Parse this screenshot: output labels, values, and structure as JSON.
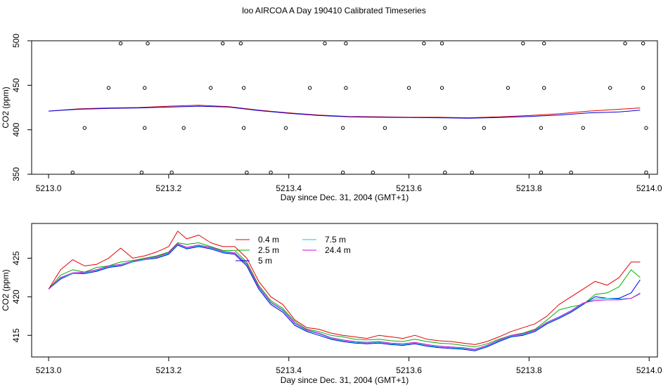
{
  "title": "loo AIRCOA A  Day 190410  Calibrated Timeseries",
  "colors": {
    "0.4 m": "#e00000",
    "2.5 m": "#00b000",
    "5 m": "#0000e0",
    "7.5 m": "#00d0d0",
    "24.4 m": "#e000e0",
    "axis": "#000000",
    "background": "#ffffff"
  },
  "chart_data": [
    {
      "type": "line",
      "title": "",
      "xlabel": "Day since Dec. 31, 2004 (GMT+1)",
      "ylabel": "CO2 (ppm)",
      "xlim": [
        4.98,
        5.013
      ],
      "ylim": [
        350,
        500
      ],
      "x_ticks": [
        "5213.0",
        "5213.2",
        "5213.4",
        "5213.6",
        "5213.8",
        "5214.0"
      ],
      "y_ticks": [
        "350",
        "400",
        "450",
        "500"
      ],
      "legend": null,
      "series": [
        {
          "color": "#e00000",
          "x": [
            5213.0,
            5213.05,
            5213.1,
            5213.15,
            5213.2,
            5213.25,
            5213.3,
            5213.35,
            5213.4,
            5213.45,
            5213.5,
            5213.55,
            5213.6,
            5213.65,
            5213.7,
            5213.75,
            5213.8,
            5213.85,
            5213.9,
            5213.95,
            5213.985
          ],
          "y": [
            421,
            423.5,
            424.5,
            425,
            426.5,
            427.5,
            426,
            422,
            419,
            416.5,
            415,
            414.5,
            414,
            414,
            413.5,
            414.5,
            416,
            418,
            421,
            423,
            424.5
          ]
        },
        {
          "color": "#0000e0",
          "x": [
            5213.0,
            5213.05,
            5213.1,
            5213.15,
            5213.2,
            5213.25,
            5213.3,
            5213.35,
            5213.4,
            5213.45,
            5213.5,
            5213.55,
            5213.6,
            5213.65,
            5213.7,
            5213.75,
            5213.8,
            5213.85,
            5213.9,
            5213.95,
            5213.985
          ],
          "y": [
            421,
            423,
            424,
            424.5,
            425.5,
            426.5,
            425.5,
            421.5,
            418.5,
            416,
            414.5,
            414,
            413.8,
            413.5,
            413,
            413.8,
            415,
            416.5,
            419,
            420,
            422
          ]
        }
      ],
      "points": {
        "x": [
          5213.04,
          5213.06,
          5213.1,
          5213.12,
          5213.155,
          5213.16,
          5213.16,
          5213.165,
          5213.205,
          5213.225,
          5213.27,
          5213.29,
          5213.32,
          5213.325,
          5213.325,
          5213.33,
          5213.37,
          5213.395,
          5213.435,
          5213.46,
          5213.49,
          5213.49,
          5213.495,
          5213.495,
          5213.54,
          5213.56,
          5213.6,
          5213.625,
          5213.655,
          5213.655,
          5213.66,
          5213.66,
          5213.705,
          5213.725,
          5213.765,
          5213.79,
          5213.82,
          5213.82,
          5213.825,
          5213.825,
          5213.87,
          5213.89,
          5213.935,
          5213.96,
          5213.99,
          5213.99,
          5213.995,
          5213.995
        ],
        "y": [
          352,
          402,
          447,
          497,
          352,
          402,
          447,
          497,
          352,
          402,
          447,
          497,
          497,
          447,
          402,
          352,
          352,
          402,
          447,
          497,
          352,
          402,
          447,
          497,
          352,
          402,
          447,
          497,
          497,
          447,
          402,
          352,
          352,
          402,
          447,
          497,
          352,
          402,
          447,
          497,
          352,
          402,
          447,
          497,
          497,
          447,
          402,
          352
        ]
      }
    },
    {
      "type": "line",
      "title": "",
      "xlabel": "Day since Dec. 31, 2004 (GMT+1)",
      "ylabel": "CO2 (ppm)",
      "xlim": [
        4.98,
        5.013
      ],
      "ylim": [
        412.2,
        429.5
      ],
      "x_ticks": [
        "5213.0",
        "5213.2",
        "5213.4",
        "5213.6",
        "5213.8",
        "5214.0"
      ],
      "y_ticks": [
        "415",
        "420",
        "425"
      ],
      "legend": {
        "placement": "top-center",
        "entries": [
          "0.4 m",
          "2.5 m",
          "5 m",
          "7.5 m",
          "24.4 m"
        ]
      },
      "series": [
        {
          "name": "0.4 m",
          "color": "#e00000",
          "x": [
            5213.0,
            5213.02,
            5213.04,
            5213.06,
            5213.08,
            5213.1,
            5213.12,
            5213.14,
            5213.16,
            5213.18,
            5213.2,
            5213.215,
            5213.23,
            5213.25,
            5213.27,
            5213.29,
            5213.31,
            5213.33,
            5213.35,
            5213.37,
            5213.39,
            5213.41,
            5213.43,
            5213.45,
            5213.47,
            5213.49,
            5213.51,
            5213.53,
            5213.55,
            5213.57,
            5213.59,
            5213.61,
            5213.63,
            5213.65,
            5213.67,
            5213.69,
            5213.71,
            5213.73,
            5213.75,
            5213.77,
            5213.79,
            5213.81,
            5213.83,
            5213.85,
            5213.87,
            5213.89,
            5213.91,
            5213.93,
            5213.95,
            5213.97,
            5213.985
          ],
          "y": [
            421,
            423.5,
            424.8,
            424,
            424.2,
            425,
            426.3,
            425,
            425.3,
            425.8,
            426.5,
            428.5,
            427.5,
            428,
            427,
            426.5,
            426.5,
            425,
            422,
            420,
            419,
            417,
            416,
            415.8,
            415.3,
            415,
            414.8,
            414.6,
            415,
            414.8,
            414.6,
            415,
            414.5,
            414.3,
            414.2,
            414,
            413.8,
            414.2,
            414.8,
            415.5,
            416,
            416.5,
            417.5,
            419,
            420,
            421,
            422,
            421.5,
            422.5,
            424.5,
            424.5
          ]
        },
        {
          "name": "2.5 m",
          "color": "#00b000",
          "x": [
            5213.0,
            5213.02,
            5213.04,
            5213.06,
            5213.08,
            5213.1,
            5213.12,
            5213.14,
            5213.16,
            5213.18,
            5213.2,
            5213.215,
            5213.23,
            5213.25,
            5213.27,
            5213.29,
            5213.31,
            5213.33,
            5213.35,
            5213.37,
            5213.39,
            5213.41,
            5213.43,
            5213.45,
            5213.47,
            5213.49,
            5213.51,
            5213.53,
            5213.55,
            5213.57,
            5213.59,
            5213.61,
            5213.63,
            5213.65,
            5213.67,
            5213.69,
            5213.71,
            5213.73,
            5213.75,
            5213.77,
            5213.79,
            5213.81,
            5213.83,
            5213.85,
            5213.87,
            5213.89,
            5213.91,
            5213.93,
            5213.95,
            5213.97,
            5213.985
          ],
          "y": [
            421,
            422.8,
            423.5,
            423.2,
            423.8,
            424,
            424.5,
            424.7,
            425,
            425.3,
            425.8,
            427,
            426.8,
            427,
            426.5,
            426,
            426,
            424.5,
            421.5,
            419.5,
            418.5,
            416.8,
            415.8,
            415.5,
            415,
            414.8,
            414.5,
            414.4,
            414.5,
            414.3,
            414.2,
            414.5,
            414.2,
            414,
            413.9,
            413.7,
            413.5,
            413.9,
            414.5,
            415,
            415.3,
            415.8,
            417,
            418.3,
            418.7,
            419,
            420.3,
            420.5,
            421.3,
            423.5,
            422.5
          ]
        },
        {
          "name": "5 m",
          "color": "#0000e0",
          "x": [
            5213.0,
            5213.02,
            5213.04,
            5213.06,
            5213.08,
            5213.1,
            5213.12,
            5213.14,
            5213.16,
            5213.18,
            5213.2,
            5213.215,
            5213.23,
            5213.25,
            5213.27,
            5213.29,
            5213.31,
            5213.33,
            5213.35,
            5213.37,
            5213.39,
            5213.41,
            5213.43,
            5213.45,
            5213.47,
            5213.49,
            5213.51,
            5213.53,
            5213.55,
            5213.57,
            5213.59,
            5213.61,
            5213.63,
            5213.65,
            5213.67,
            5213.69,
            5213.71,
            5213.73,
            5213.75,
            5213.77,
            5213.79,
            5213.81,
            5213.83,
            5213.85,
            5213.87,
            5213.89,
            5213.91,
            5213.93,
            5213.95,
            5213.97,
            5213.985
          ],
          "y": [
            421,
            422.3,
            423,
            423,
            423.3,
            423.8,
            424,
            424.5,
            424.8,
            425,
            425.5,
            426.7,
            426.2,
            426.5,
            426.2,
            425.7,
            425.5,
            424,
            421,
            419,
            418,
            416.3,
            415.5,
            415,
            414.5,
            414.2,
            414,
            413.9,
            414,
            413.8,
            413.7,
            413.9,
            413.6,
            413.4,
            413.3,
            413.2,
            413,
            413.5,
            414.2,
            414.8,
            415,
            415.5,
            416.5,
            417.2,
            418,
            419,
            420,
            419.8,
            419.8,
            420.5,
            422.2
          ]
        },
        {
          "name": "7.5 m",
          "color": "#00d0d0",
          "x": [
            5213.0,
            5213.02,
            5213.04,
            5213.06,
            5213.08,
            5213.1,
            5213.12,
            5213.14,
            5213.16,
            5213.18,
            5213.2,
            5213.215,
            5213.23,
            5213.25,
            5213.27,
            5213.29,
            5213.31,
            5213.33,
            5213.35,
            5213.37,
            5213.39,
            5213.41,
            5213.43,
            5213.45,
            5213.47,
            5213.49,
            5213.51,
            5213.53,
            5213.55,
            5213.57,
            5213.59,
            5213.61,
            5213.63,
            5213.65,
            5213.67,
            5213.69,
            5213.71,
            5213.73,
            5213.75,
            5213.77,
            5213.79,
            5213.81,
            5213.83,
            5213.85,
            5213.87,
            5213.89,
            5213.91,
            5213.93,
            5213.95,
            5213.97,
            5213.985
          ],
          "y": [
            421,
            422.4,
            423,
            423.1,
            423.4,
            423.9,
            424.1,
            424.5,
            424.8,
            425.1,
            425.6,
            426.8,
            426.3,
            426.6,
            426.3,
            425.8,
            425.6,
            424.2,
            421.2,
            419.2,
            418.2,
            416.5,
            415.6,
            415.2,
            414.6,
            414.3,
            414.1,
            414,
            414.1,
            413.9,
            413.8,
            414,
            413.7,
            413.5,
            413.4,
            413.3,
            413.1,
            413.6,
            414.3,
            414.9,
            415.1,
            415.6,
            416.6,
            417.3,
            418.1,
            419.1,
            419.7,
            419.8,
            419.7,
            419.8,
            420.5
          ]
        },
        {
          "name": "24.4 m",
          "color": "#e000e0",
          "x": [
            5213.0,
            5213.02,
            5213.04,
            5213.06,
            5213.08,
            5213.1,
            5213.12,
            5213.14,
            5213.16,
            5213.18,
            5213.2,
            5213.215,
            5213.23,
            5213.25,
            5213.27,
            5213.29,
            5213.31,
            5213.33,
            5213.35,
            5213.37,
            5213.39,
            5213.41,
            5213.43,
            5213.45,
            5213.47,
            5213.49,
            5213.51,
            5213.53,
            5213.55,
            5213.57,
            5213.59,
            5213.61,
            5213.63,
            5213.65,
            5213.67,
            5213.69,
            5213.71,
            5213.73,
            5213.75,
            5213.77,
            5213.79,
            5213.81,
            5213.83,
            5213.85,
            5213.87,
            5213.89,
            5213.91,
            5213.93,
            5213.95,
            5213.97,
            5213.985
          ],
          "y": [
            421,
            422.5,
            423.1,
            423.2,
            423.5,
            424,
            424.2,
            424.6,
            424.9,
            425.2,
            425.7,
            426.9,
            426.4,
            426.7,
            426.4,
            425.9,
            425.7,
            424.3,
            421.3,
            419.3,
            418.3,
            416.6,
            415.7,
            415.3,
            414.7,
            414.4,
            414.2,
            414.1,
            414.2,
            414,
            413.9,
            414.1,
            413.8,
            413.6,
            413.5,
            413.4,
            413.2,
            413.7,
            414.4,
            415,
            415.2,
            415.7,
            416.7,
            417.4,
            418.2,
            419.2,
            419.5,
            419.6,
            419.6,
            419.8,
            420.4
          ]
        }
      ]
    }
  ]
}
